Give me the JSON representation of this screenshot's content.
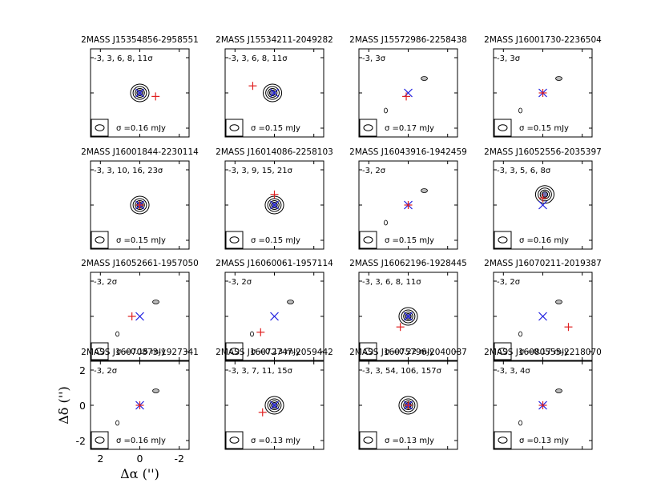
{
  "figure": {
    "ylabel": "Δδ ('')",
    "xlabel": "Δα ('')",
    "x_ticks": [
      "2",
      "0",
      "-2"
    ],
    "y_ticks": [
      "2",
      "0",
      "-2"
    ],
    "colors": {
      "contour": "#000000",
      "star_marker": "#e02020",
      "mm_marker": "#2020e0",
      "inner_fill": "#7070b0"
    }
  },
  "chart_data": {
    "type": "contour-grid",
    "axis_range_arcsec": {
      "x": [
        2.5,
        -2.5
      ],
      "y": [
        -2.5,
        2.5
      ]
    },
    "panels": [
      {
        "title": "2MASS J15354856-2958551",
        "levels": "-3, 3, 6, 8, 11σ",
        "sigma": "σ =0.16 mJy",
        "star": [
          -0.8,
          -0.2
        ],
        "peak": [
          0.0,
          0.0
        ],
        "detected": true
      },
      {
        "title": "2MASS J15534211-2049282",
        "levels": "-3, 3, 6, 8, 11σ",
        "sigma": "σ =0.15 mJy",
        "star": [
          1.1,
          0.4
        ],
        "peak": [
          0.1,
          0.0
        ],
        "detected": true
      },
      {
        "title": "2MASS J15572986-2258438",
        "levels": "-3, 3σ",
        "sigma": "σ =0.17 mJy",
        "star": [
          0.1,
          -0.2
        ],
        "peak": [
          0.0,
          0.0
        ],
        "detected": false
      },
      {
        "title": "2MASS J16001730-2236504",
        "levels": "-3, 3σ",
        "sigma": "σ =0.15 mJy",
        "star": [
          0.0,
          0.0
        ],
        "peak": [
          0.0,
          0.0
        ],
        "detected": false
      },
      {
        "title": "2MASS J16001844-2230114",
        "levels": "-3, 3, 10, 16, 23σ",
        "sigma": "σ =0.15 mJy",
        "star": [
          0.0,
          0.0
        ],
        "peak": [
          0.0,
          0.0
        ],
        "detected": true
      },
      {
        "title": "2MASS J16014086-2258103",
        "levels": "-3, 3, 9, 15, 21σ",
        "sigma": "σ =0.15 mJy",
        "star": [
          0.0,
          0.6
        ],
        "peak": [
          0.0,
          0.0
        ],
        "detected": true
      },
      {
        "title": "2MASS J16043916-1942459",
        "levels": "-3, 2σ",
        "sigma": "σ =0.15 mJy",
        "star": [
          0.0,
          0.0
        ],
        "peak": [
          0.0,
          0.0
        ],
        "detected": false
      },
      {
        "title": "2MASS J16052556-2035397",
        "levels": "-3, 3, 5, 6, 8σ",
        "sigma": "σ =0.16 mJy",
        "star": [
          0.0,
          0.4
        ],
        "peak": [
          -0.1,
          0.6
        ],
        "detected": true
      },
      {
        "title": "2MASS J16052661-1957050",
        "levels": "-3, 2σ",
        "sigma": "σ =0.15 mJy",
        "star": [
          0.4,
          0.0
        ],
        "peak": [
          0.0,
          0.0
        ],
        "detected": false
      },
      {
        "title": "2MASS J16060061-1957114",
        "levels": "-3, 2σ",
        "sigma": "σ =0.13 mJy",
        "star": [
          0.7,
          -0.9
        ],
        "peak": [
          0.0,
          0.0
        ],
        "detected": false
      },
      {
        "title": "2MASS J16062196-1928445",
        "levels": "-3, 3, 6, 8, 11σ",
        "sigma": "σ =0.22 mJy",
        "star": [
          0.4,
          -0.6
        ],
        "peak": [
          0.0,
          0.0
        ],
        "detected": true
      },
      {
        "title": "2MASS J16070211-2019387",
        "levels": "-3, 2σ",
        "sigma": "σ =0.17 mJy",
        "star": [
          -1.3,
          -0.6
        ],
        "peak": [
          0.0,
          0.0
        ],
        "detected": false
      },
      {
        "title": "2MASS J16070873-1927341",
        "levels": "-3, 2σ",
        "sigma": "σ =0.16 mJy",
        "star": [
          0.0,
          0.0
        ],
        "peak": [
          0.0,
          0.0
        ],
        "detected": false
      },
      {
        "title": "2MASS J16072747-2059442",
        "levels": "-3, 3, 7, 11, 15σ",
        "sigma": "σ =0.13 mJy",
        "star": [
          0.6,
          -0.4
        ],
        "peak": [
          0.0,
          0.0
        ],
        "detected": true
      },
      {
        "title": "2MASS J16075796-2040087",
        "levels": "-3, 3, 54, 106, 157σ",
        "sigma": "σ =0.13 mJy",
        "star": [
          0.0,
          0.0
        ],
        "peak": [
          0.0,
          0.0
        ],
        "detected": true
      },
      {
        "title": "2MASS J16080555-2218070",
        "levels": "-3, 3, 4σ",
        "sigma": "σ =0.13 mJy",
        "star": [
          0.0,
          0.0
        ],
        "peak": [
          0.0,
          0.0
        ],
        "detected": false
      }
    ]
  }
}
